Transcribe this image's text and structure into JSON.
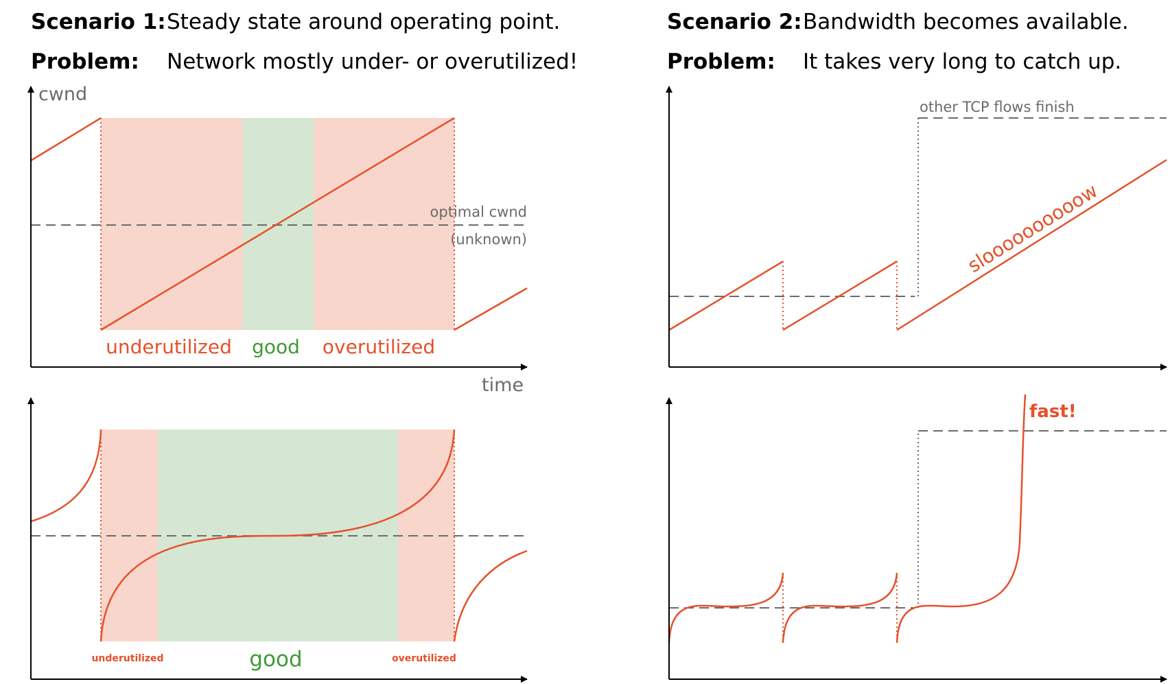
{
  "scenario1": {
    "label": "Scenario 1:",
    "text": "Steady state around operating point.",
    "problem_label": "Problem:",
    "problem_text": "Network mostly under- or overutilized!"
  },
  "scenario2": {
    "label": "Scenario 2:",
    "text": "Bandwidth becomes available.",
    "problem_label": "Problem:",
    "problem_text": "It takes very long to catch up."
  },
  "axes": {
    "y_label": "cwnd",
    "x_label": "time"
  },
  "annotations": {
    "optimal_1": "optimal cwnd",
    "optimal_2": "(unknown)",
    "other_flows": "other TCP flows finish",
    "slow": "sloooooooooow",
    "fast": "fast!"
  },
  "regions_top": {
    "under": "underutilized",
    "good": "good",
    "over": "overutilized"
  },
  "regions_bottom": {
    "under": "underutilized",
    "good": "good",
    "over": "overutilized"
  },
  "colors": {
    "curve": "#e5512b",
    "under_fill": "#f8d6cc",
    "good_fill": "#d5e7d3",
    "good_text": "#3f9a35",
    "dash": "#6b6b6b",
    "axis": "#000000",
    "muted_text": "#6b6b6b"
  }
}
